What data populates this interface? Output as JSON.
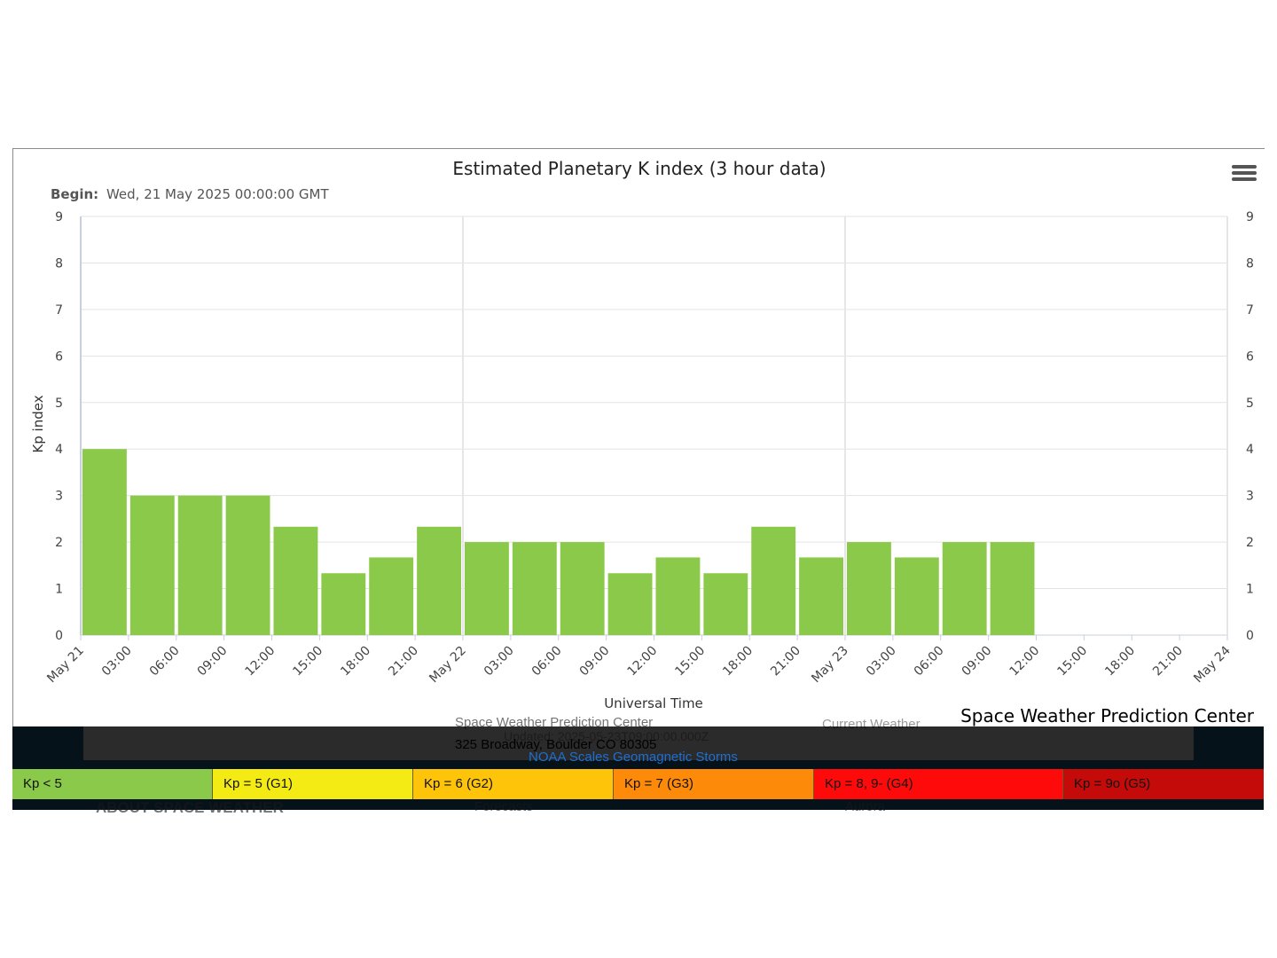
{
  "chart_data": {
    "type": "bar",
    "title": "Estimated Planetary K index (3 hour data)",
    "subtitle_label": "Begin:",
    "subtitle_value": "Wed, 21 May 2025 00:00:00 GMT",
    "xlabel": "Universal Time",
    "ylabel": "Kp index",
    "ylim": [
      0,
      9
    ],
    "y_ticks": [
      "0",
      "1",
      "2",
      "3",
      "4",
      "5",
      "6",
      "7",
      "8",
      "9"
    ],
    "x_tick_labels": [
      "May 21",
      "03:00",
      "06:00",
      "09:00",
      "12:00",
      "15:00",
      "18:00",
      "21:00",
      "May 22",
      "03:00",
      "06:00",
      "09:00",
      "12:00",
      "15:00",
      "18:00",
      "21:00",
      "May 23",
      "03:00",
      "06:00",
      "09:00",
      "12:00",
      "15:00",
      "18:00",
      "21:00",
      "May 24"
    ],
    "categories": [
      "May 21 00:00",
      "May 21 03:00",
      "May 21 06:00",
      "May 21 09:00",
      "May 21 12:00",
      "May 21 15:00",
      "May 21 18:00",
      "May 21 21:00",
      "May 22 00:00",
      "May 22 03:00",
      "May 22 06:00",
      "May 22 09:00",
      "May 22 12:00",
      "May 22 15:00",
      "May 22 18:00",
      "May 22 21:00",
      "May 23 00:00",
      "May 23 03:00",
      "May 23 06:00",
      "May 23 09:00"
    ],
    "values": [
      4,
      3,
      3,
      3,
      2.33,
      1.33,
      1.67,
      2.33,
      2,
      2,
      2,
      1.33,
      1.67,
      1.33,
      2.33,
      1.67,
      2,
      1.67,
      2,
      2
    ],
    "bar_color": "#8bc94a",
    "grid": true
  },
  "credit": "Space Weather Prediction Center",
  "footer": {
    "org_ghost": "Space Weather Prediction Center",
    "address": "325 Broadway, Boulder CO 80305",
    "updated_ghost": "Updated: 2025-05-23T09:00:00.000Z",
    "weather_ghost": "Current Weather",
    "link": "NOAA Scales Geomagnetic Storms",
    "nav_about": "ABOUT SPACE WEATHER",
    "nav_forecasts": "Forecasts",
    "nav_aurora": "Aurora"
  },
  "scale": [
    {
      "label": "Kp < 5",
      "color": "#8bc94a"
    },
    {
      "label": "Kp = 5 (G1)",
      "color": "#f4ea14"
    },
    {
      "label": "Kp = 6 (G2)",
      "color": "#fec40a"
    },
    {
      "label": "Kp = 7 (G3)",
      "color": "#fe8a0a"
    },
    {
      "label": "Kp = 8, 9- (G4)",
      "color": "#fe0a0a"
    },
    {
      "label": "Kp = 9o (G5)",
      "color": "#c50a0a"
    }
  ]
}
